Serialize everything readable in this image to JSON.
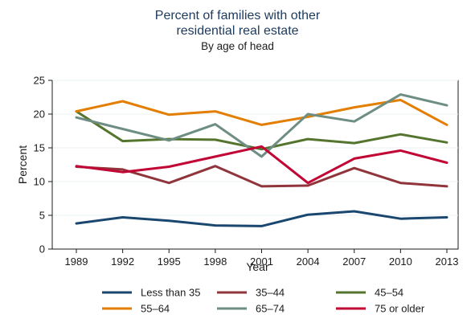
{
  "chart_data": {
    "type": "line",
    "title_line1": "Percent of families with other",
    "title_line2": "residential real estate",
    "subtitle": "By age of head",
    "xlabel": "Year",
    "ylabel": "Percent",
    "x": [
      1989,
      1992,
      1995,
      1998,
      2001,
      2004,
      2007,
      2010,
      2013
    ],
    "x_tick_labels": [
      "1989",
      "1992",
      "1995",
      "1998",
      "2001",
      "2004",
      "2007",
      "2010",
      "2013"
    ],
    "ylim": [
      0,
      25
    ],
    "y_ticks": [
      0,
      5,
      10,
      15,
      20,
      25
    ],
    "y_tick_labels": [
      "0",
      "5",
      "10",
      "15",
      "20",
      "25"
    ],
    "grid": true,
    "legend_position": "bottom",
    "series": [
      {
        "name": "Less than 35",
        "color": "#1a476f",
        "values": [
          3.8,
          4.7,
          4.2,
          3.5,
          3.4,
          5.1,
          5.6,
          4.5,
          4.7
        ]
      },
      {
        "name": "35–44",
        "color": "#90353b",
        "values": [
          12.2,
          11.8,
          9.8,
          12.3,
          9.3,
          9.4,
          12.0,
          9.8,
          9.3
        ]
      },
      {
        "name": "45–54",
        "color": "#55752f",
        "values": [
          20.4,
          16.0,
          16.3,
          16.2,
          14.8,
          16.3,
          15.7,
          17.0,
          15.8
        ]
      },
      {
        "name": "55–64",
        "color": "#e37e00",
        "values": [
          20.4,
          21.9,
          19.9,
          20.4,
          18.4,
          19.6,
          21.0,
          22.1,
          18.4
        ]
      },
      {
        "name": "65–74",
        "color": "#6e8e84",
        "values": [
          19.5,
          17.8,
          16.1,
          18.5,
          13.7,
          20.0,
          18.9,
          22.9,
          21.3
        ]
      },
      {
        "name": "75 or older",
        "color": "#c10534",
        "values": [
          12.3,
          11.4,
          12.2,
          13.7,
          15.2,
          9.8,
          13.4,
          14.6,
          12.8
        ]
      }
    ]
  }
}
